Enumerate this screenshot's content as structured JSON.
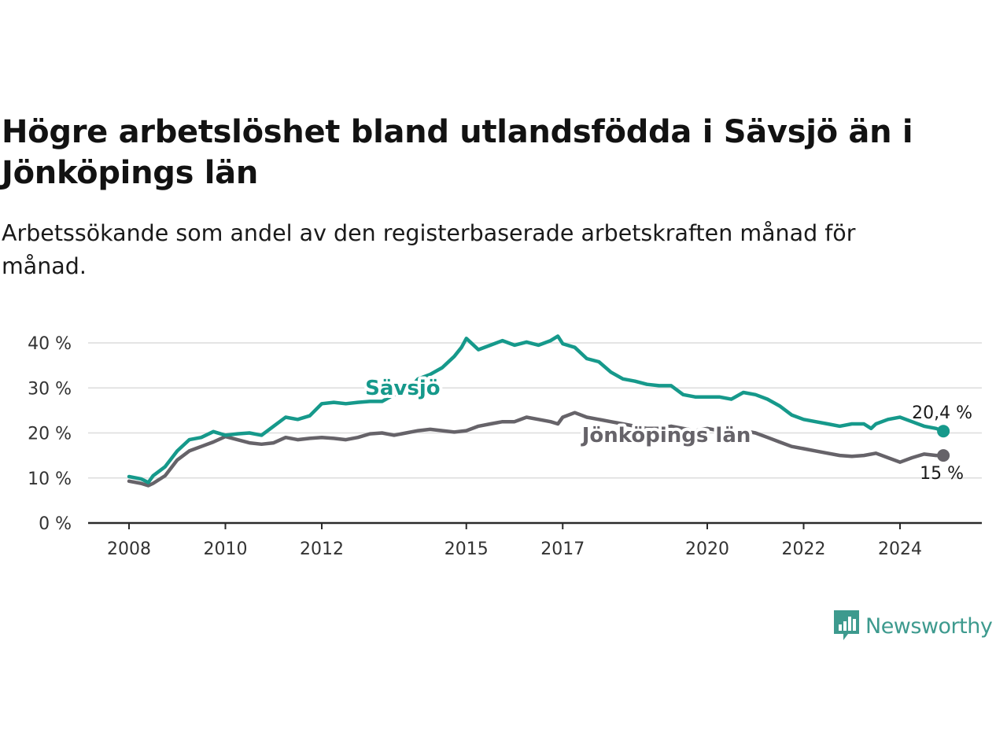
{
  "title": "Högre arbetslöshet bland utlandsfödda i Sävsjö än i Jönköpings län",
  "subtitle": "Arbetssökande som andel av den registerbaserade arbetskraften månad för månad.",
  "brand": {
    "name": "Newsworthy",
    "icon": "newsworthy-logo-icon",
    "color": "#3d9a8e"
  },
  "chart_data": {
    "type": "line",
    "title": "Högre arbetslöshet bland utlandsfödda i Sävsjö än i Jönköpings län",
    "subtitle": "Arbetssökande som andel av den registerbaserade arbetskraften månad för månad.",
    "xlabel": "",
    "ylabel": "",
    "xlim": [
      2008.0,
      2026.5
    ],
    "ylim": [
      0,
      40
    ],
    "x_ticks": [
      2008,
      2010,
      2012,
      2015,
      2017,
      2020,
      2022,
      2024
    ],
    "x_tick_labels": [
      "2008",
      "2010",
      "2012",
      "2015",
      "2017",
      "2020",
      "2022",
      "2024"
    ],
    "y_ticks": [
      0,
      10,
      20,
      30,
      40
    ],
    "y_tick_labels": [
      "0 %",
      "10 %",
      "20 %",
      "30 %",
      "40 %"
    ],
    "grid": true,
    "legend": "inline labels",
    "series": [
      {
        "name": "Sävsjö",
        "color": "#16998b",
        "end_label": "20,4 %",
        "x": [
          2008.0,
          2008.25,
          2008.4,
          2008.5,
          2008.75,
          2009.0,
          2009.25,
          2009.5,
          2009.75,
          2010.0,
          2010.25,
          2010.5,
          2010.75,
          2011.0,
          2011.25,
          2011.5,
          2011.75,
          2012.0,
          2012.25,
          2012.5,
          2012.75,
          2013.0,
          2013.25,
          2013.5,
          2013.75,
          2014.0,
          2014.25,
          2014.5,
          2014.75,
          2014.9,
          2015.0,
          2015.25,
          2015.5,
          2015.75,
          2016.0,
          2016.25,
          2016.5,
          2016.75,
          2016.9,
          2017.0,
          2017.25,
          2017.5,
          2017.75,
          2018.0,
          2018.25,
          2018.5,
          2018.75,
          2019.0,
          2019.25,
          2019.5,
          2019.75,
          2020.0,
          2020.25,
          2020.5,
          2020.75,
          2021.0,
          2021.25,
          2021.5,
          2021.75,
          2022.0,
          2022.25,
          2022.5,
          2022.75,
          2023.0,
          2023.25,
          2023.4,
          2023.5,
          2023.75,
          2024.0,
          2024.25,
          2024.5,
          2024.75,
          2024.9
        ],
        "values": [
          10.3,
          9.8,
          9.0,
          10.5,
          12.5,
          16.0,
          18.5,
          19.0,
          20.3,
          19.5,
          19.8,
          20.0,
          19.5,
          21.5,
          23.5,
          23.0,
          23.8,
          26.5,
          26.8,
          26.5,
          26.8,
          27.0,
          27.0,
          28.5,
          29.0,
          32.0,
          33.0,
          34.5,
          37.0,
          39.0,
          41.0,
          38.5,
          39.5,
          40.5,
          39.5,
          40.2,
          39.5,
          40.5,
          41.5,
          39.8,
          39.0,
          36.5,
          35.8,
          33.5,
          32.0,
          31.5,
          30.8,
          30.5,
          30.5,
          28.5,
          28.0,
          28.0,
          28.0,
          27.5,
          29.0,
          28.5,
          27.5,
          26.0,
          24.0,
          23.0,
          22.5,
          22.0,
          21.5,
          22.0,
          22.0,
          21.0,
          22.0,
          23.0,
          23.5,
          22.5,
          21.5,
          21.0,
          20.4
        ]
      },
      {
        "name": "Jönköpings län",
        "color": "#666369",
        "end_label": "15 %",
        "x": [
          2008.0,
          2008.25,
          2008.4,
          2008.5,
          2008.75,
          2009.0,
          2009.25,
          2009.5,
          2009.75,
          2010.0,
          2010.25,
          2010.5,
          2010.75,
          2011.0,
          2011.25,
          2011.5,
          2011.75,
          2012.0,
          2012.25,
          2012.5,
          2012.75,
          2013.0,
          2013.25,
          2013.5,
          2013.75,
          2014.0,
          2014.25,
          2014.5,
          2014.75,
          2015.0,
          2015.25,
          2015.5,
          2015.75,
          2016.0,
          2016.25,
          2016.5,
          2016.75,
          2016.9,
          2017.0,
          2017.25,
          2017.5,
          2017.75,
          2018.0,
          2018.25,
          2018.5,
          2018.75,
          2019.0,
          2019.25,
          2019.5,
          2019.75,
          2020.0,
          2020.25,
          2020.5,
          2020.75,
          2021.0,
          2021.25,
          2021.5,
          2021.75,
          2022.0,
          2022.25,
          2022.5,
          2022.75,
          2023.0,
          2023.25,
          2023.5,
          2023.75,
          2024.0,
          2024.25,
          2024.5,
          2024.75,
          2024.9
        ],
        "values": [
          9.3,
          8.8,
          8.3,
          8.8,
          10.5,
          14.0,
          16.0,
          17.0,
          18.0,
          19.2,
          18.5,
          17.8,
          17.5,
          17.8,
          19.0,
          18.5,
          18.8,
          19.0,
          18.8,
          18.5,
          19.0,
          19.8,
          20.0,
          19.5,
          20.0,
          20.5,
          20.8,
          20.5,
          20.2,
          20.5,
          21.5,
          22.0,
          22.5,
          22.5,
          23.5,
          23.0,
          22.5,
          22.0,
          23.5,
          24.5,
          23.5,
          23.0,
          22.5,
          22.0,
          21.5,
          21.0,
          21.0,
          21.5,
          21.0,
          20.5,
          21.0,
          20.5,
          20.5,
          20.5,
          20.0,
          19.0,
          18.0,
          17.0,
          16.5,
          16.0,
          15.5,
          15.0,
          14.8,
          15.0,
          15.5,
          14.5,
          13.5,
          14.5,
          15.3,
          15.0,
          15.0
        ]
      }
    ]
  }
}
